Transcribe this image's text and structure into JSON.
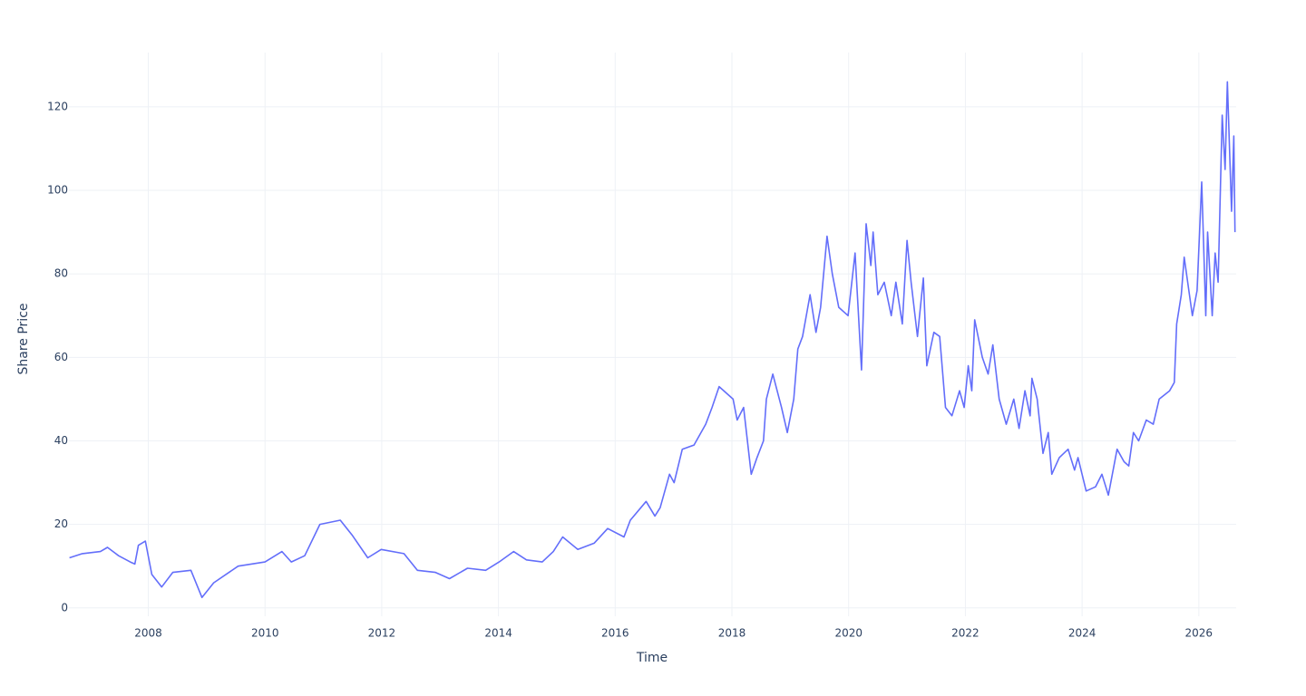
{
  "chart_data": {
    "type": "line",
    "x_label": "Time",
    "y_label": "Share Price",
    "x": [
      2006.65,
      2006.87,
      2007.18,
      2007.3,
      2007.49,
      2007.69,
      2007.77,
      2007.83,
      2007.95,
      2008.06,
      2008.23,
      2008.42,
      2008.73,
      2008.92,
      2009.12,
      2009.54,
      2010.0,
      2010.29,
      2010.45,
      2010.68,
      2010.94,
      2011.29,
      2011.49,
      2011.76,
      2011.99,
      2012.38,
      2012.61,
      2012.92,
      2013.16,
      2013.47,
      2013.78,
      2014.01,
      2014.26,
      2014.48,
      2014.75,
      2014.94,
      2015.1,
      2015.36,
      2015.64,
      2015.87,
      2016.15,
      2016.26,
      2016.53,
      2016.68,
      2016.77,
      2016.93,
      2017.01,
      2017.15,
      2017.35,
      2017.55,
      2017.66,
      2017.78,
      2018.02,
      2018.09,
      2018.2,
      2018.33,
      2018.43,
      2018.54,
      2018.59,
      2018.7,
      2018.85,
      2018.95,
      2019.06,
      2019.13,
      2019.21,
      2019.34,
      2019.44,
      2019.52,
      2019.63,
      2019.72,
      2019.83,
      2019.99,
      2020.11,
      2020.22,
      2020.3,
      2020.38,
      2020.42,
      2020.5,
      2020.61,
      2020.73,
      2020.81,
      2020.92,
      2021.0,
      2021.07,
      2021.18,
      2021.28,
      2021.34,
      2021.46,
      2021.56,
      2021.66,
      2021.77,
      2021.9,
      2021.98,
      2022.05,
      2022.11,
      2022.16,
      2022.29,
      2022.39,
      2022.47,
      2022.58,
      2022.7,
      2022.83,
      2022.92,
      2023.02,
      2023.11,
      2023.14,
      2023.23,
      2023.33,
      2023.42,
      2023.48,
      2023.61,
      2023.76,
      2023.87,
      2023.93,
      2024.07,
      2024.23,
      2024.34,
      2024.45,
      2024.6,
      2024.72,
      2024.8,
      2024.88,
      2024.97,
      2025.1,
      2025.22,
      2025.32,
      2025.5,
      2025.58,
      2025.62,
      2025.7,
      2025.75,
      2025.89,
      2025.97,
      2026.05,
      2026.12,
      2026.15,
      2026.23,
      2026.28,
      2026.33,
      2026.4,
      2026.45,
      2026.49,
      2026.56,
      2026.6,
      2026.62
    ],
    "series": [
      {
        "name": "Share Price",
        "color": "#636efa",
        "values": [
          12,
          13,
          13.5,
          14.5,
          12.5,
          11,
          10.5,
          15,
          16,
          8,
          5,
          8.5,
          9,
          2.5,
          6,
          10,
          11,
          13.5,
          11,
          12.5,
          20,
          21,
          17.5,
          12,
          14,
          13,
          9,
          8.5,
          7,
          9.5,
          9,
          11,
          13.5,
          11.5,
          11,
          13.5,
          17,
          14,
          15.5,
          19,
          17,
          21,
          25.5,
          22,
          24,
          32,
          30,
          38,
          39,
          44,
          48,
          53,
          50,
          45,
          48,
          32,
          36,
          40,
          50,
          56,
          48,
          42,
          50,
          62,
          65,
          75,
          66,
          72,
          89,
          80,
          72,
          70,
          85,
          57,
          92,
          82,
          90,
          75,
          78,
          70,
          78,
          68,
          88,
          78,
          65,
          79,
          58,
          66,
          65,
          48,
          46,
          52,
          48,
          58,
          52,
          69,
          60,
          56,
          63,
          50,
          44,
          50,
          43,
          52,
          46,
          55,
          50,
          37,
          42,
          32,
          36,
          38,
          33,
          36,
          28,
          29,
          32,
          27,
          38,
          35,
          34,
          42,
          40,
          45,
          44,
          50,
          52,
          54,
          68,
          75,
          84,
          70,
          76,
          102,
          70,
          90,
          70,
          85,
          78,
          118,
          105,
          126,
          95,
          113,
          90
        ]
      }
    ],
    "xlim": [
      2006.64,
      2026.64
    ],
    "xticks": [
      2008,
      2010,
      2012,
      2014,
      2016,
      2018,
      2020,
      2022,
      2024,
      2026
    ],
    "ylim": [
      -2,
      133
    ],
    "yticks": [
      0,
      20,
      40,
      60,
      80,
      100,
      120
    ],
    "grid": true
  }
}
